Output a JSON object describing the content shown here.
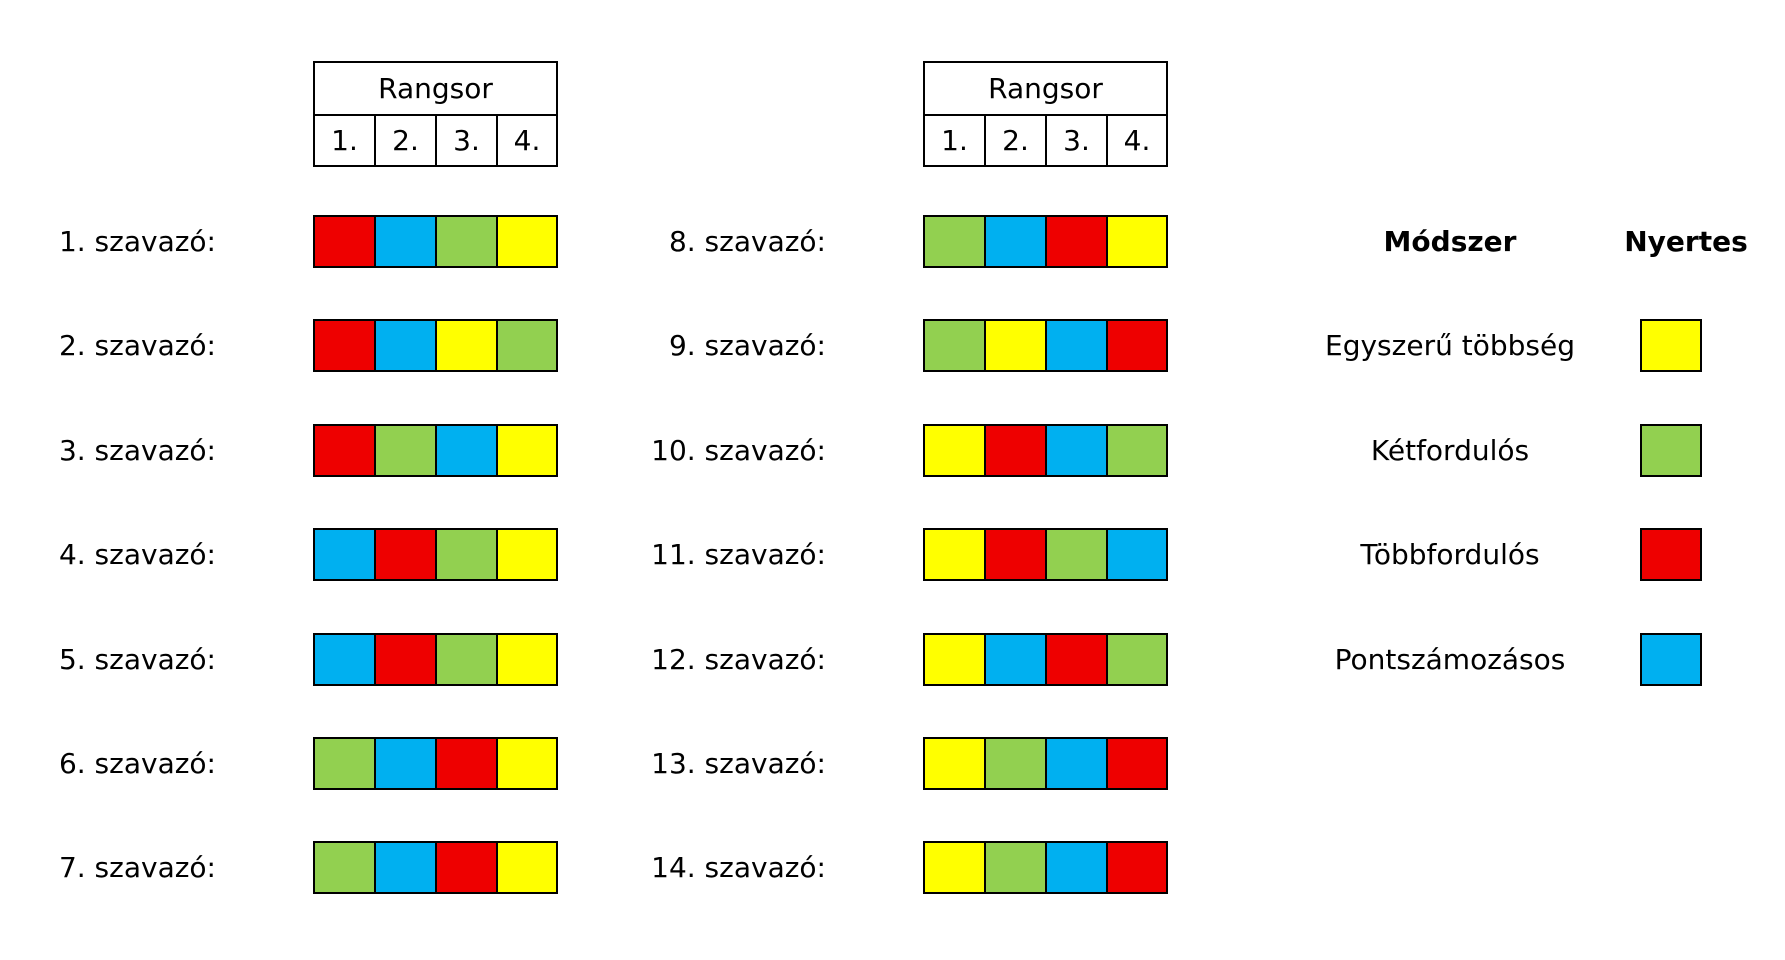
{
  "colors": {
    "red": "#EE0000",
    "blue": "#00B0F0",
    "green": "#92D050",
    "yellow": "#FFFF00"
  },
  "header": {
    "title": "Rangsor",
    "ranks": [
      "1.",
      "2.",
      "3.",
      "4."
    ]
  },
  "voters": [
    {
      "label": "1. szavazó:",
      "ranking": [
        "red",
        "blue",
        "green",
        "yellow"
      ]
    },
    {
      "label": "2. szavazó:",
      "ranking": [
        "red",
        "blue",
        "yellow",
        "green"
      ]
    },
    {
      "label": "3. szavazó:",
      "ranking": [
        "red",
        "green",
        "blue",
        "yellow"
      ]
    },
    {
      "label": "4. szavazó:",
      "ranking": [
        "blue",
        "red",
        "green",
        "yellow"
      ]
    },
    {
      "label": "5. szavazó:",
      "ranking": [
        "blue",
        "red",
        "green",
        "yellow"
      ]
    },
    {
      "label": "6. szavazó:",
      "ranking": [
        "green",
        "blue",
        "red",
        "yellow"
      ]
    },
    {
      "label": "7. szavazó:",
      "ranking": [
        "green",
        "blue",
        "red",
        "yellow"
      ]
    },
    {
      "label": "8. szavazó:",
      "ranking": [
        "green",
        "blue",
        "red",
        "yellow"
      ]
    },
    {
      "label": "9. szavazó:",
      "ranking": [
        "green",
        "yellow",
        "blue",
        "red"
      ]
    },
    {
      "label": "10. szavazó:",
      "ranking": [
        "yellow",
        "red",
        "blue",
        "green"
      ]
    },
    {
      "label": "11. szavazó:",
      "ranking": [
        "yellow",
        "red",
        "green",
        "blue"
      ]
    },
    {
      "label": "12. szavazó:",
      "ranking": [
        "yellow",
        "blue",
        "red",
        "green"
      ]
    },
    {
      "label": "13. szavazó:",
      "ranking": [
        "yellow",
        "green",
        "blue",
        "red"
      ]
    },
    {
      "label": "14. szavazó:",
      "ranking": [
        "yellow",
        "green",
        "blue",
        "red"
      ]
    }
  ],
  "results": {
    "method_header": "Módszer",
    "winner_header": "Nyertes",
    "rows": [
      {
        "method": "Egyszerű többség",
        "winner": "yellow"
      },
      {
        "method": "Kétfordulós",
        "winner": "green"
      },
      {
        "method": "Többfordulós",
        "winner": "red"
      },
      {
        "method": "Pontszámozásos",
        "winner": "blue"
      }
    ]
  }
}
